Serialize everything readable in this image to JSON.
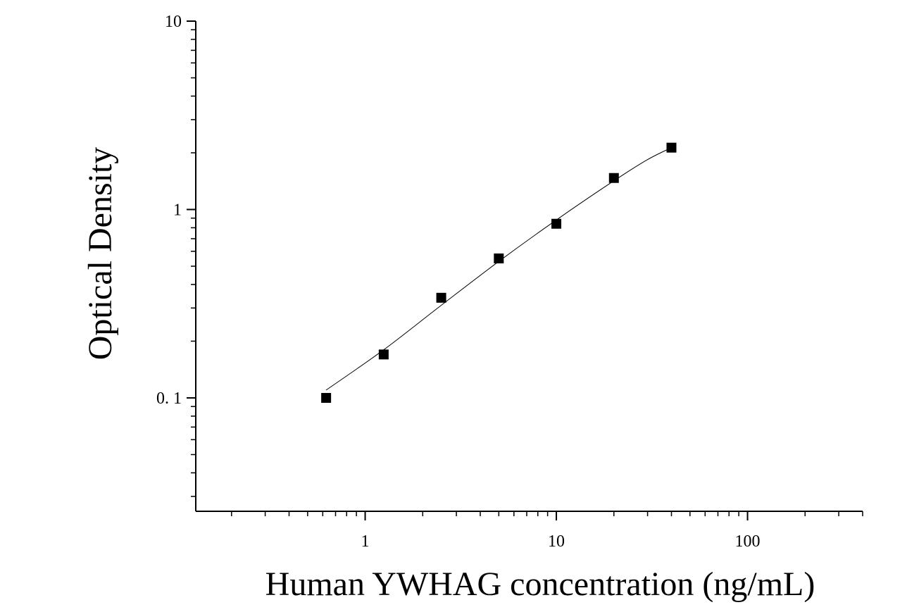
{
  "chart_data": {
    "type": "scatter",
    "xlabel": "Human YWHAG concentration (ng/mL)",
    "ylabel": "Optical Density",
    "xscale": "log",
    "yscale": "log",
    "xlim": [
      0.13,
      400
    ],
    "ylim": [
      0.025,
      10
    ],
    "xticks": [
      {
        "value": 1,
        "label": "1"
      },
      {
        "value": 10,
        "label": "10"
      },
      {
        "value": 100,
        "label": "100"
      }
    ],
    "yticks": [
      {
        "value": 0.1,
        "label": "0. 1"
      },
      {
        "value": 1,
        "label": "1"
      },
      {
        "value": 10,
        "label": "10"
      }
    ],
    "grid": false,
    "legend": "none",
    "series": [
      {
        "marker": "square",
        "color": "#000000",
        "x": [
          0.625,
          1.25,
          2.5,
          5,
          10,
          20,
          40
        ],
        "y": [
          0.1,
          0.17,
          0.34,
          0.55,
          0.84,
          1.47,
          2.13
        ]
      }
    ],
    "fit_curve": {
      "color": "#000000",
      "x": [
        0.625,
        1.25,
        2.5,
        5,
        10,
        20,
        30,
        40
      ],
      "y": [
        0.11,
        0.18,
        0.31,
        0.53,
        0.88,
        1.42,
        1.84,
        2.13
      ]
    }
  }
}
